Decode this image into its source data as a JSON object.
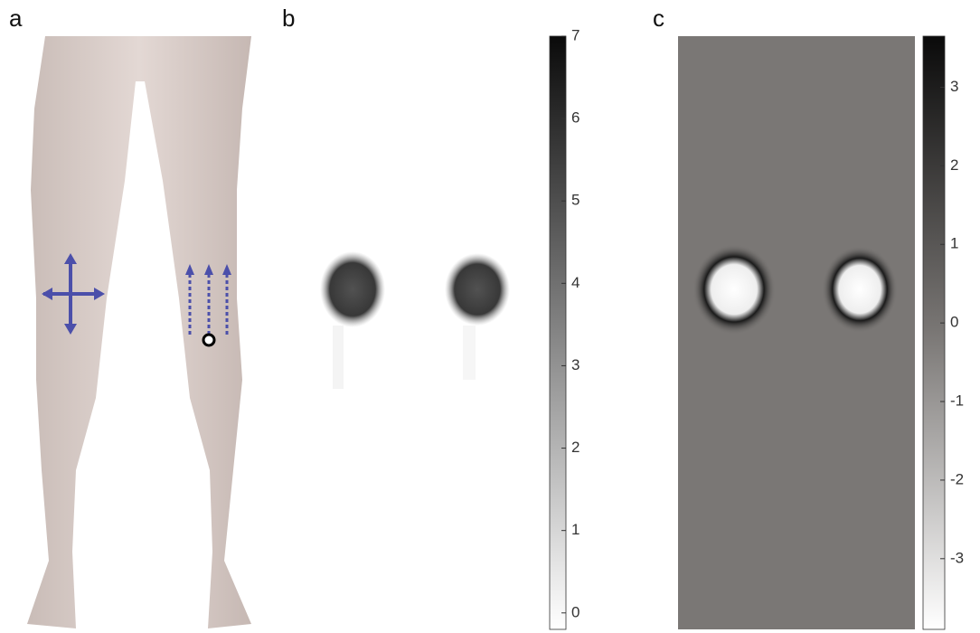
{
  "panels": [
    {
      "label": "a"
    },
    {
      "label": "b",
      "colorbar": {
        "lim": [
          -0.2,
          7
        ],
        "ticks": [
          0,
          1,
          2,
          3,
          4,
          5,
          6,
          7
        ]
      }
    },
    {
      "label": "c",
      "colorbar": {
        "lim": [
          -3.9,
          3.65
        ],
        "ticks": [
          -3,
          -2,
          -1,
          0,
          1,
          2,
          3
        ]
      }
    }
  ]
}
